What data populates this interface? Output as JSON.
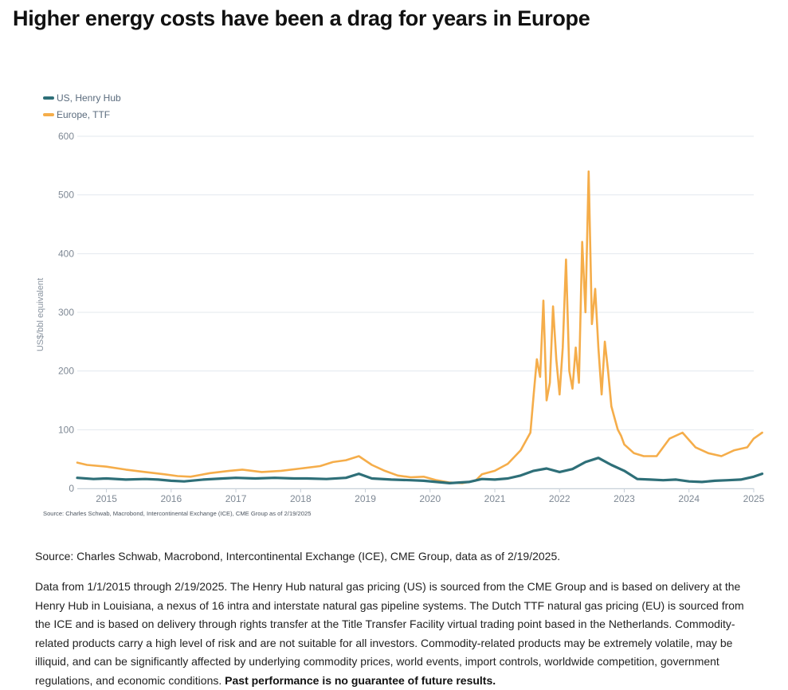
{
  "headline": "Higher energy costs have been a drag for years in Europe",
  "colors": {
    "us": "#2e6f78",
    "europe": "#f5ad4a",
    "grid": "#e3e8ee",
    "tick": "#7e8894"
  },
  "chart_data": {
    "type": "line",
    "title": "",
    "xlabel": "",
    "ylabel": "US$/bbl equivalent",
    "ylim": [
      0,
      600
    ],
    "xlim": [
      2014.55,
      2025.0
    ],
    "yticks": [
      "0",
      "100",
      "200",
      "300",
      "400",
      "500",
      "600"
    ],
    "xticks": [
      "2015",
      "2016",
      "2017",
      "2018",
      "2019",
      "2020",
      "2021",
      "2022",
      "2023",
      "2024",
      "2025"
    ],
    "legend_position": "top-left",
    "grid": true,
    "source_note": "Source: Charles Schwab, Macrobond, Intercontinental Exchange (ICE), CME Group as of 2/19/2025",
    "series": [
      {
        "name": "US, Henry Hub",
        "color": "#2e6f78",
        "x": [
          2014.55,
          2014.8,
          2015.0,
          2015.3,
          2015.6,
          2015.8,
          2016.0,
          2016.2,
          2016.5,
          2016.8,
          2017.0,
          2017.3,
          2017.6,
          2017.9,
          2018.1,
          2018.4,
          2018.7,
          2018.9,
          2019.1,
          2019.4,
          2019.7,
          2019.9,
          2020.1,
          2020.3,
          2020.6,
          2020.8,
          2021.0,
          2021.2,
          2021.4,
          2021.6,
          2021.8,
          2022.0,
          2022.2,
          2022.4,
          2022.6,
          2022.8,
          2023.0,
          2023.2,
          2023.4,
          2023.6,
          2023.8,
          2024.0,
          2024.2,
          2024.4,
          2024.6,
          2024.8,
          2025.0,
          2025.13
        ],
        "y": [
          18,
          16,
          17,
          15,
          16,
          15,
          13,
          12,
          15,
          17,
          18,
          17,
          18,
          17,
          17,
          16,
          18,
          25,
          17,
          15,
          14,
          13,
          11,
          9,
          11,
          16,
          15,
          17,
          22,
          30,
          34,
          28,
          33,
          45,
          52,
          40,
          30,
          16,
          15,
          14,
          15,
          12,
          11,
          13,
          14,
          15,
          20,
          25
        ]
      },
      {
        "name": "Europe, TTF",
        "color": "#f5ad4a",
        "x": [
          2014.55,
          2014.7,
          2015.0,
          2015.3,
          2015.6,
          2015.9,
          2016.1,
          2016.3,
          2016.6,
          2016.9,
          2017.1,
          2017.4,
          2017.7,
          2018.0,
          2018.3,
          2018.5,
          2018.7,
          2018.9,
          2019.1,
          2019.3,
          2019.5,
          2019.7,
          2019.9,
          2020.1,
          2020.3,
          2020.5,
          2020.7,
          2020.8,
          2021.0,
          2021.2,
          2021.4,
          2021.55,
          2021.6,
          2021.65,
          2021.7,
          2021.75,
          2021.8,
          2021.85,
          2021.9,
          2021.95,
          2022.0,
          2022.05,
          2022.1,
          2022.15,
          2022.2,
          2022.25,
          2022.3,
          2022.35,
          2022.4,
          2022.45,
          2022.5,
          2022.55,
          2022.6,
          2022.65,
          2022.7,
          2022.75,
          2022.8,
          2022.85,
          2022.9,
          2022.95,
          2023.0,
          2023.15,
          2023.3,
          2023.5,
          2023.7,
          2023.9,
          2024.1,
          2024.3,
          2024.5,
          2024.7,
          2024.9,
          2025.0,
          2025.13
        ],
        "y": [
          44,
          40,
          37,
          32,
          28,
          24,
          21,
          20,
          26,
          30,
          32,
          28,
          30,
          34,
          38,
          45,
          48,
          55,
          40,
          30,
          22,
          19,
          20,
          14,
          10,
          9,
          13,
          24,
          30,
          42,
          65,
          95,
          160,
          220,
          190,
          320,
          150,
          180,
          310,
          220,
          160,
          240,
          390,
          200,
          170,
          240,
          180,
          420,
          300,
          540,
          280,
          340,
          240,
          160,
          250,
          200,
          140,
          120,
          100,
          90,
          75,
          60,
          55,
          55,
          85,
          95,
          70,
          60,
          55,
          65,
          70,
          85,
          95
        ]
      }
    ]
  },
  "source": "Source: Charles Schwab, Macrobond, Intercontinental Exchange (ICE), CME Group, data as of 2/19/2025.",
  "disclaimer": "Data from 1/1/2015 through 2/19/2025. The Henry Hub natural gas pricing (US) is sourced from the CME Group and is based on delivery at the Henry Hub in Louisiana, a nexus of 16 intra and interstate natural gas pipeline systems. The Dutch TTF natural gas pricing (EU) is sourced from the ICE and is based on delivery through rights transfer at the Title Transfer Facility virtual trading point based in the Netherlands. Commodity-related products carry a high level of risk and are not suitable for all investors. Commodity-related products may be extremely volatile, may be illiquid, and can be significantly affected by underlying commodity prices, world events, import controls, worldwide competition, government regulations, and economic conditions.",
  "disclaimer_bold": "Past performance is no guarantee of future results."
}
